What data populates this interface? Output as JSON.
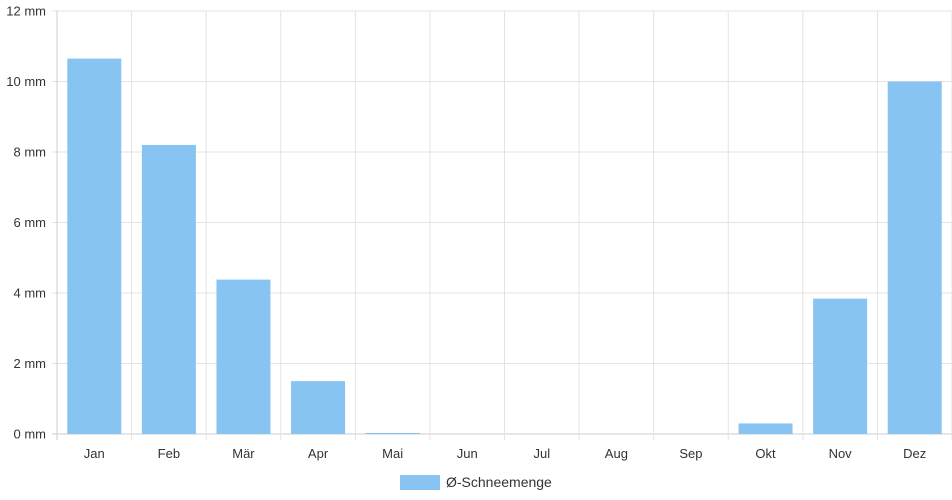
{
  "chart_data": {
    "type": "bar",
    "categories": [
      "Jan",
      "Feb",
      "Mär",
      "Apr",
      "Mai",
      "Jun",
      "Jul",
      "Aug",
      "Sep",
      "Okt",
      "Nov",
      "Dez"
    ],
    "series": [
      {
        "name": "Ø-Schneemenge",
        "values": [
          10.65,
          8.2,
          4.38,
          1.5,
          0.03,
          0,
          0,
          0,
          0,
          0.3,
          3.84,
          10.0
        ],
        "color": "#88c4f2"
      }
    ],
    "y_ticks": [
      "0 mm",
      "2 mm",
      "4 mm",
      "6 mm",
      "8 mm",
      "10 mm",
      "12 mm"
    ],
    "ylim": [
      0,
      12
    ],
    "grid": true,
    "legend_position": "bottom-center",
    "grid_color": "#e3e3e3",
    "axis_color": "#cccccc"
  }
}
